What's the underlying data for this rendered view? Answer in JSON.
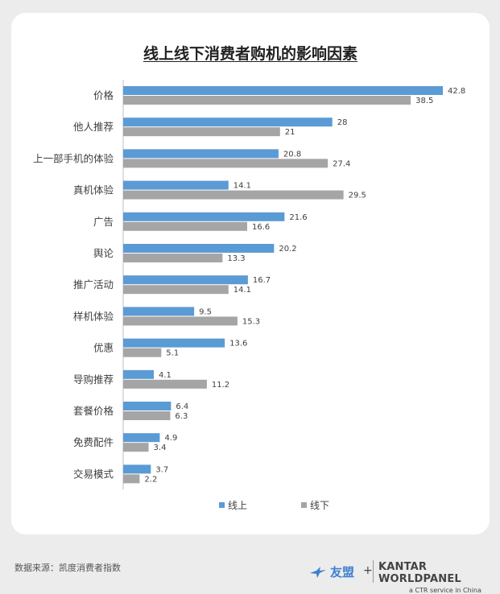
{
  "footer": {
    "source": "数据来源：凯度消费者指数",
    "brand_um": "友盟",
    "plus": "+",
    "brand_kantar": "KANTAR WORLDPANEL",
    "brand_ctr": "a CTR service in China"
  },
  "colors": {
    "online": "#5b9bd5",
    "offline": "#a5a5a5",
    "axis": "#bfbfbf",
    "label": "#404040"
  },
  "chart_data": {
    "type": "bar",
    "orientation": "horizontal",
    "title": "线上线下消费者购机的影响因素",
    "categories": [
      "价格",
      "他人推荐",
      "上一部手机的体验",
      "真机体验",
      "广告",
      "舆论",
      "推广活动",
      "样机体验",
      "优惠",
      "导购推荐",
      "套餐价格",
      "免费配件",
      "交易模式"
    ],
    "series": [
      {
        "name": "线上",
        "values": [
          42.8,
          28,
          20.8,
          14.1,
          21.6,
          20.2,
          16.7,
          9.5,
          13.6,
          4.1,
          6.4,
          4.9,
          3.7
        ]
      },
      {
        "name": "线下",
        "values": [
          38.5,
          21,
          27.4,
          29.5,
          16.6,
          13.3,
          14.1,
          15.3,
          5.1,
          11.2,
          6.3,
          3.4,
          2.2
        ]
      }
    ],
    "value_labels": {
      "online": [
        "42.8",
        "28",
        "20.8",
        "14.1",
        "21.6",
        "20.2",
        "16.7",
        "9.5",
        "13.6",
        "4.1",
        "6.4",
        "4.9",
        "3.7"
      ],
      "offline": [
        "38.5",
        "21",
        "27.4",
        "29.5",
        "16.6",
        "13.3",
        "14.1",
        "15.3",
        "5.1",
        "11.2",
        "6.3",
        "3.4",
        "2.2"
      ]
    },
    "xlim": [
      0,
      42.8
    ],
    "grid": false,
    "legend_position": "bottom"
  }
}
